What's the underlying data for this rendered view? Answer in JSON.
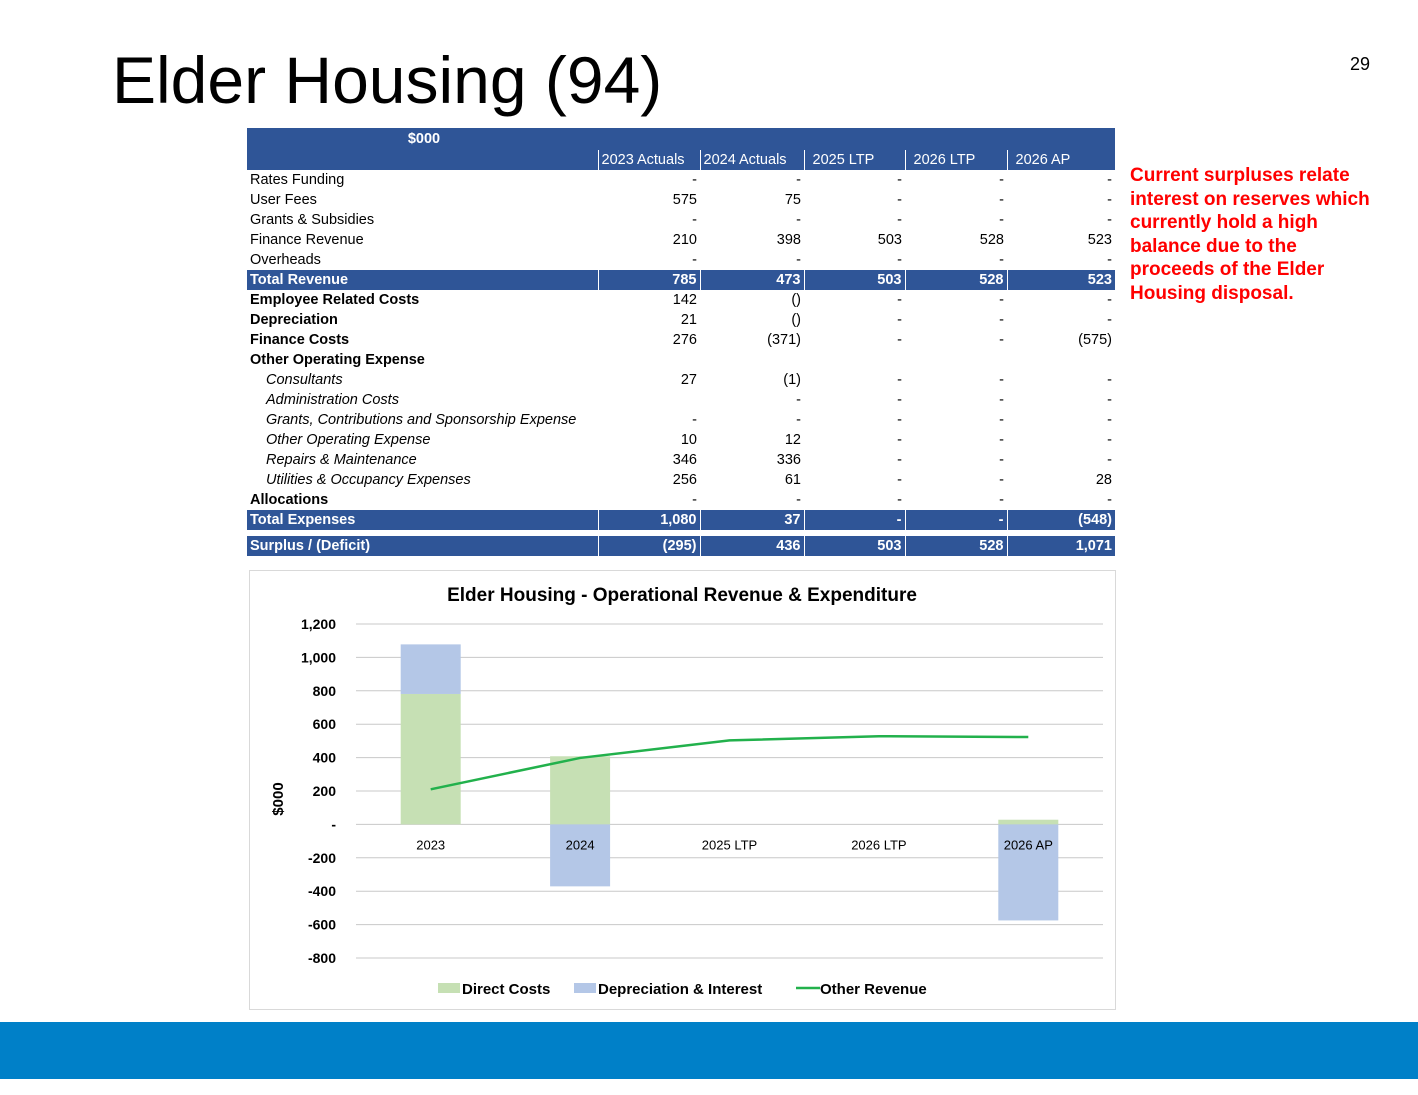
{
  "slide": {
    "title": "Elder Housing (94)",
    "page_number": "29",
    "note": "Current surpluses relate interest on reserves which currently hold a high balance due to the proceeds of the Elder Housing disposal.",
    "colors": {
      "header_blue": "#2f5597",
      "footer_blue": "#0080c8",
      "note_red": "#ff0000"
    }
  },
  "table": {
    "unit_label": "$000",
    "columns": [
      "2023 Actuals",
      "2024 Actuals",
      "2025 LTP",
      "2026 LTP",
      "2026 AP"
    ],
    "rows": [
      {
        "label": "Rates Funding",
        "values": [
          "-",
          "-",
          "-",
          "-",
          "-"
        ]
      },
      {
        "label": "User Fees",
        "values": [
          "575",
          "75",
          "-",
          "-",
          "-"
        ]
      },
      {
        "label": "Grants & Subsidies",
        "values": [
          "-",
          "-",
          "-",
          "-",
          "-"
        ]
      },
      {
        "label": "Finance Revenue",
        "values": [
          "210",
          "398",
          "503",
          "528",
          "523"
        ]
      },
      {
        "label": "Overheads",
        "values": [
          "-",
          "-",
          "-",
          "-",
          "-"
        ]
      },
      {
        "label": "Total Revenue",
        "values": [
          "785",
          "473",
          "503",
          "528",
          "523"
        ]
      },
      {
        "label": "Employee Related Costs",
        "values": [
          "142",
          "()",
          "-",
          "-",
          "-"
        ]
      },
      {
        "label": "Depreciation",
        "values": [
          "21",
          "()",
          "-",
          "-",
          "-"
        ]
      },
      {
        "label": "Finance Costs",
        "values": [
          "276",
          "(371)",
          "-",
          "-",
          "(575)"
        ]
      },
      {
        "label": "Other Operating  Expense",
        "values": [
          "",
          "",
          "",
          "",
          ""
        ]
      },
      {
        "label": "Consultants",
        "values": [
          "27",
          "(1)",
          "-",
          "-",
          "-"
        ]
      },
      {
        "label": "Administration Costs",
        "values": [
          "",
          "-",
          "-",
          "-",
          "-"
        ]
      },
      {
        "label": "Grants, Contributions and Sponsorship Expense",
        "values": [
          "-",
          "-",
          "-",
          "-",
          "-"
        ]
      },
      {
        "label": "Other Operating Expense",
        "values": [
          "10",
          "12",
          "-",
          "-",
          "-"
        ]
      },
      {
        "label": "Repairs & Maintenance",
        "values": [
          "346",
          "336",
          "-",
          "-",
          "-"
        ]
      },
      {
        "label": "Utilities & Occupancy Expenses",
        "values": [
          "256",
          "61",
          "-",
          "-",
          "28"
        ]
      },
      {
        "label": "Allocations",
        "values": [
          "-",
          "-",
          "-",
          "-",
          "-"
        ]
      },
      {
        "label": "Total Expenses",
        "values": [
          "1,080",
          "37",
          "-",
          "-",
          "(548)"
        ]
      },
      {
        "label": "Surplus / (Deficit)",
        "values": [
          "(295)",
          "436",
          "503",
          "528",
          "1,071"
        ]
      }
    ]
  },
  "chart_data": {
    "type": "bar",
    "stacked": true,
    "title": "Elder Housing - Operational Revenue & Expenditure",
    "ylabel": "$000",
    "xlabel": "",
    "categories": [
      "2023",
      "2024",
      "2025 LTP",
      "2026 LTP",
      "2026 AP"
    ],
    "ylim": [
      -800,
      1200
    ],
    "yticks": [
      1200,
      1000,
      800,
      600,
      400,
      200,
      0,
      -200,
      -400,
      -600,
      -800
    ],
    "ytick_labels": [
      "1,200",
      "1,000",
      "800",
      "600",
      "400",
      "200",
      "-",
      "-200",
      "-400",
      "-600",
      "-800"
    ],
    "grid": true,
    "legend_position": "bottom",
    "series": [
      {
        "name": "Direct Costs",
        "kind": "bar",
        "color": "#c6e0b4",
        "values": [
          781,
          408,
          0,
          0,
          28
        ]
      },
      {
        "name": "Depreciation & Interest",
        "kind": "bar",
        "color": "#b4c7e7",
        "values": [
          297,
          -371,
          0,
          0,
          -575
        ]
      },
      {
        "name": "Other Revenue",
        "kind": "line",
        "color": "#22b14c",
        "values": [
          210,
          398,
          503,
          528,
          523
        ]
      }
    ]
  }
}
